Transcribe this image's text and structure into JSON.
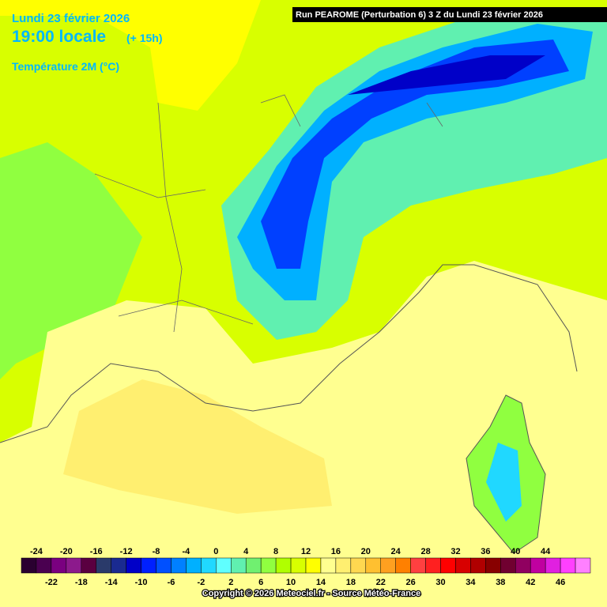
{
  "header": {
    "date": "Lundi 23 février 2026",
    "time": "19:00 locale",
    "lead": "(+ 15h)",
    "variable": "Température 2M (°C)",
    "run": "Run PEAROME (Perturbation 6) 3 Z du Lundi 23 février 2026"
  },
  "legend": {
    "ticks_top": [
      -24,
      -20,
      -16,
      -12,
      -8,
      -4,
      0,
      4,
      8,
      12,
      16,
      20,
      24,
      28,
      32,
      36,
      40,
      44
    ],
    "ticks_bottom": [
      -22,
      -18,
      -14,
      -10,
      -6,
      -2,
      2,
      6,
      10,
      14,
      18,
      22,
      26,
      30,
      34,
      38,
      42,
      46
    ],
    "colors": [
      "#2a0030",
      "#4a0050",
      "#7a0080",
      "#8c1a8c",
      "#5a0040",
      "#2a3a6a",
      "#1a2a90",
      "#0000c8",
      "#0020ff",
      "#0050ff",
      "#0080ff",
      "#00b0ff",
      "#20d8ff",
      "#60ffff",
      "#60f0b0",
      "#70f070",
      "#90ff40",
      "#b0ff00",
      "#d8ff00",
      "#ffff00",
      "#ffff90",
      "#ffef70",
      "#ffd850",
      "#ffc030",
      "#ffa020",
      "#ff8000",
      "#ff4040",
      "#ff2020",
      "#ff0000",
      "#d80000",
      "#b00000",
      "#880000",
      "#700030",
      "#900060",
      "#c000a0",
      "#e020e0",
      "#ff40ff",
      "#ff80ff"
    ]
  },
  "footer": {
    "copyright": "Copyright © 2026 Meteociel.fr - Source Météo-France"
  }
}
